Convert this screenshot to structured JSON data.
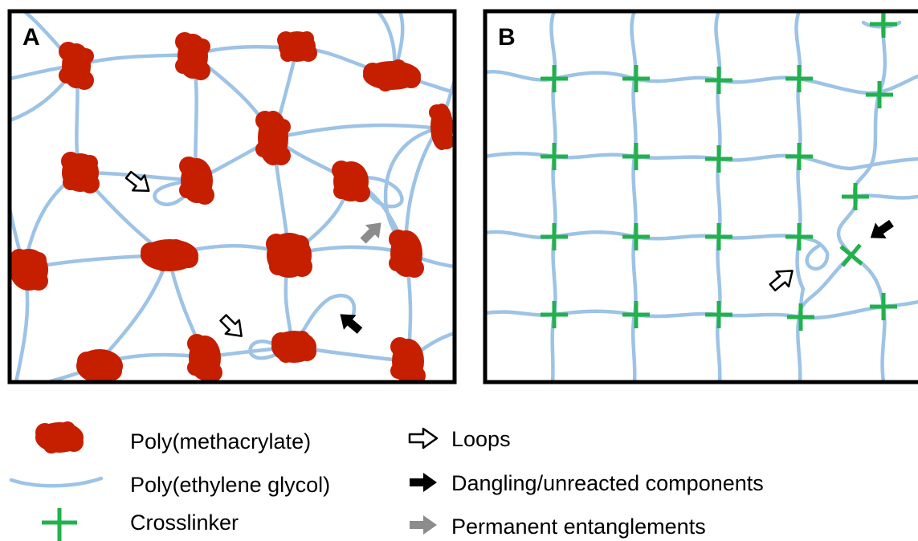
{
  "panels": {
    "a_label": "A",
    "b_label": "B"
  },
  "legend": {
    "polymethacrylate": "Poly(methacrylate)",
    "peg": "Poly(ethylene glycol)",
    "crosslinker": "Crosslinker",
    "loops": "Loops",
    "dangling": "Dangling/unreacted components",
    "entanglements": "Permanent entanglements"
  },
  "colors": {
    "polymethacrylate": "#c61f00",
    "peg_chain": "#9dc3e6",
    "crosslinker": "#22b14c",
    "loop_arrow": "#ffffff",
    "dangling_arrow": "#000000",
    "entanglement_arrow": "#8c8c8c"
  }
}
